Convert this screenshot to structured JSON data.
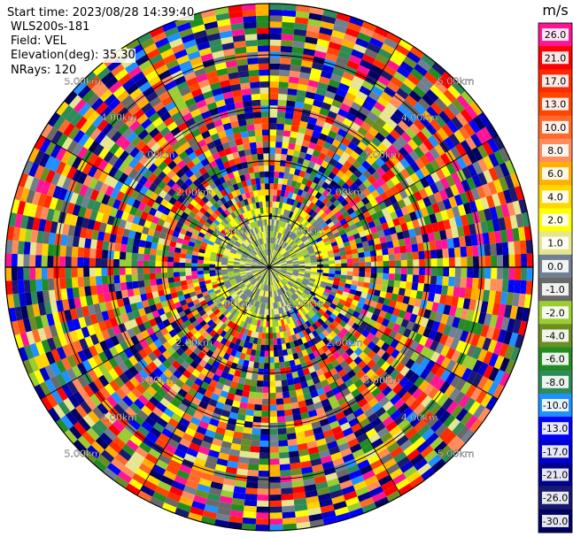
{
  "header": {
    "start_time": "Start time: 2023/08/28 14:39:40",
    "instrument": "WLS200s-181",
    "field": "Field: VEL",
    "elevation": "Elevation(deg): 35.30",
    "nrays": "NRays: 120"
  },
  "colorbar": {
    "unit": "m/s",
    "levels": [
      {
        "label": "26.0",
        "color": "#ff1493"
      },
      {
        "label": "21.0",
        "color": "#ff0000"
      },
      {
        "label": "17.0",
        "color": "#ff2a00"
      },
      {
        "label": "13.0",
        "color": "#ff4500"
      },
      {
        "label": "10.0",
        "color": "#ff6a2a"
      },
      {
        "label": "8.0",
        "color": "#ff8c5a"
      },
      {
        "label": "6.0",
        "color": "#ffb000"
      },
      {
        "label": "4.0",
        "color": "#ffd700"
      },
      {
        "label": "2.0",
        "color": "#ffff00"
      },
      {
        "label": "1.0",
        "color": "#e6e690"
      },
      {
        "label": "0.0",
        "color": "#708090"
      },
      {
        "label": "-1.0",
        "color": "#696969"
      },
      {
        "label": "-2.0",
        "color": "#9acd32"
      },
      {
        "label": "-4.0",
        "color": "#6b8e23"
      },
      {
        "label": "-6.0",
        "color": "#228b22"
      },
      {
        "label": "-8.0",
        "color": "#2e8b57"
      },
      {
        "label": "-10.0",
        "color": "#1e90ff"
      },
      {
        "label": "-13.0",
        "color": "#0000ff"
      },
      {
        "label": "-17.0",
        "color": "#0000cd"
      },
      {
        "label": "-21.0",
        "color": "#00008b"
      },
      {
        "label": "-26.0",
        "color": "#191970"
      },
      {
        "label": "-30.0",
        "color": "#000060"
      }
    ]
  },
  "chart_data": {
    "type": "heatmap",
    "projection": "polar-ppi",
    "field": "VEL",
    "unit": "m/s",
    "nrays": 120,
    "range_ring_labels": [
      "1.00km",
      "2.00km",
      "3.00km",
      "4.00km",
      "5.00km"
    ],
    "range_rings_km": [
      1,
      2,
      3,
      4,
      5
    ],
    "grid": true,
    "colorbar_placement": "right"
  },
  "ring_label_text": {
    "r1": "1.00km",
    "r2": "2.00km",
    "r3": "3.00km",
    "r4": "4.00km",
    "r5": "5.00km"
  }
}
